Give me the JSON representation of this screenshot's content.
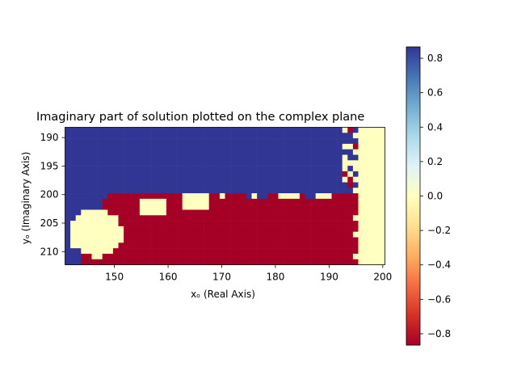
{
  "chart_data": {
    "type": "heatmap",
    "title": "Imaginary part of solution plotted on the complex plane",
    "xlabel": "xₒ (Real Axis)",
    "ylabel": "yₒ (Imaginary Axis)",
    "xlim": [
      140.8,
      200.4
    ],
    "ylim": [
      212.3,
      188.2
    ],
    "x_ticks": [
      150,
      160,
      170,
      180,
      190,
      200
    ],
    "y_ticks": [
      190,
      195,
      200,
      205,
      210
    ],
    "colorbar": {
      "colormap": "RdYlBu",
      "range": [
        -0.866,
        0.866
      ],
      "ticks": [
        -0.8,
        -0.6,
        -0.4,
        -0.2,
        0.0,
        0.2,
        0.4,
        0.6,
        0.8
      ]
    },
    "grid": false,
    "value_levels": {
      "blue": 0.866,
      "yellow": 0.0,
      "red": -0.866
    },
    "regions": [
      {
        "value": 0.866,
        "description": "upper band, y from 188 to about 200 across x 141 to 194"
      },
      {
        "value": 0.0,
        "description": "right edge strip, x about 194 to 200"
      },
      {
        "value": 0.0,
        "description": "lower-left patch, x about 142 to 152, y about 202 to 211"
      },
      {
        "value": 0.0,
        "description": "central patches near y 200-205, x about 155 to 170"
      },
      {
        "value": -0.866,
        "description": "lower band, y from about 201 to 212, x about 150 to 195"
      },
      {
        "value": 0.866,
        "description": "lower-left edge wedge, x 141 to 147, y 202 to 212"
      }
    ]
  },
  "colors": {
    "blue": "#313695",
    "yellow": "#ffffbf",
    "red": "#a50026"
  }
}
